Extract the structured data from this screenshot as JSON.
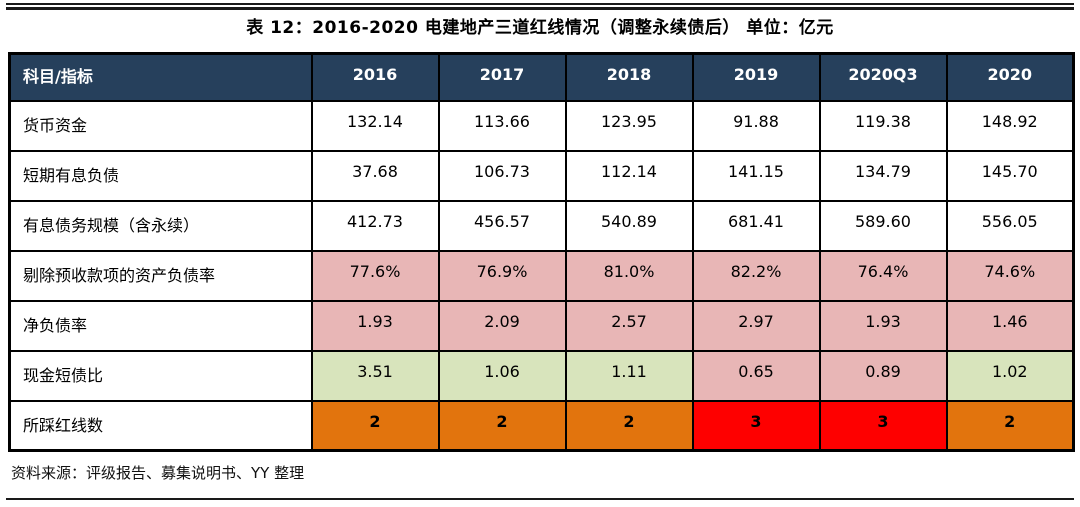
{
  "page": {
    "title": "表 12：2016-2020 电建地产三道红线情况（调整永续债后）  单位：亿元",
    "source_note": "资料来源：评级报告、募集说明书、YY 整理"
  },
  "colors": {
    "header_bg": "#26405C",
    "header_text": "#FFFFFF",
    "border": "#000000",
    "fills": {
      "none": "#FFFFFF",
      "pink": "#E8B6B6",
      "green": "#D8E4BC",
      "orange": "#E2740D",
      "red": "#FE0000"
    }
  },
  "chart_data": {
    "type": "table",
    "title": "表 12：2016-2020 电建地产三道红线情况（调整永续债后） 单位：亿元",
    "header": [
      "科目/指标",
      "2016",
      "2017",
      "2018",
      "2019",
      "2020Q3",
      "2020"
    ],
    "rows": [
      {
        "label": "货币资金",
        "values": [
          "132.14",
          "113.66",
          "123.95",
          "91.88",
          "119.38",
          "148.92"
        ],
        "fills": [
          "none",
          "none",
          "none",
          "none",
          "none",
          "none"
        ],
        "bold": false
      },
      {
        "label": "短期有息负债",
        "values": [
          "37.68",
          "106.73",
          "112.14",
          "141.15",
          "134.79",
          "145.70"
        ],
        "fills": [
          "none",
          "none",
          "none",
          "none",
          "none",
          "none"
        ],
        "bold": false
      },
      {
        "label": "有息债务规模（含永续）",
        "values": [
          "412.73",
          "456.57",
          "540.89",
          "681.41",
          "589.60",
          "556.05"
        ],
        "fills": [
          "none",
          "none",
          "none",
          "none",
          "none",
          "none"
        ],
        "bold": false
      },
      {
        "label": "剔除预收款项的资产负债率",
        "values": [
          "77.6%",
          "76.9%",
          "81.0%",
          "82.2%",
          "76.4%",
          "74.6%"
        ],
        "fills": [
          "pink",
          "pink",
          "pink",
          "pink",
          "pink",
          "pink"
        ],
        "bold": false
      },
      {
        "label": "净负债率",
        "values": [
          "1.93",
          "2.09",
          "2.57",
          "2.97",
          "1.93",
          "1.46"
        ],
        "fills": [
          "pink",
          "pink",
          "pink",
          "pink",
          "pink",
          "pink"
        ],
        "bold": false
      },
      {
        "label": "现金短债比",
        "values": [
          "3.51",
          "1.06",
          "1.11",
          "0.65",
          "0.89",
          "1.02"
        ],
        "fills": [
          "green",
          "green",
          "green",
          "pink",
          "pink",
          "green"
        ],
        "bold": false
      },
      {
        "label": "所踩红线数",
        "values": [
          "2",
          "2",
          "2",
          "3",
          "3",
          "2"
        ],
        "fills": [
          "orange",
          "orange",
          "orange",
          "red",
          "red",
          "orange"
        ],
        "bold": true
      }
    ]
  }
}
